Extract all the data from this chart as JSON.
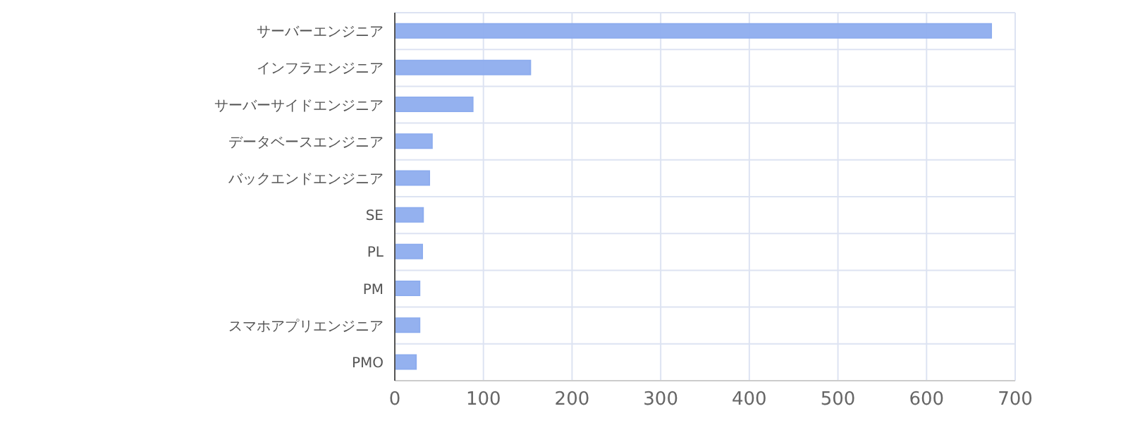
{
  "chart_data": {
    "type": "bar",
    "orientation": "horizontal",
    "categories": [
      "サーバーエンジニア",
      "インフラエンジニア",
      "サーバーサイドエンジニア",
      "データベースエンジニア",
      "バックエンドエンジニア",
      "SE",
      "PL",
      "PM",
      "スマホアプリエンジニア",
      "PMO"
    ],
    "values": [
      673,
      153,
      88,
      42,
      39,
      32,
      31,
      28,
      28,
      24
    ],
    "color": "#8eadee",
    "xlim": [
      0,
      700
    ],
    "xticks": [
      0,
      100,
      200,
      300,
      400,
      500,
      600,
      700
    ],
    "grid": true
  }
}
